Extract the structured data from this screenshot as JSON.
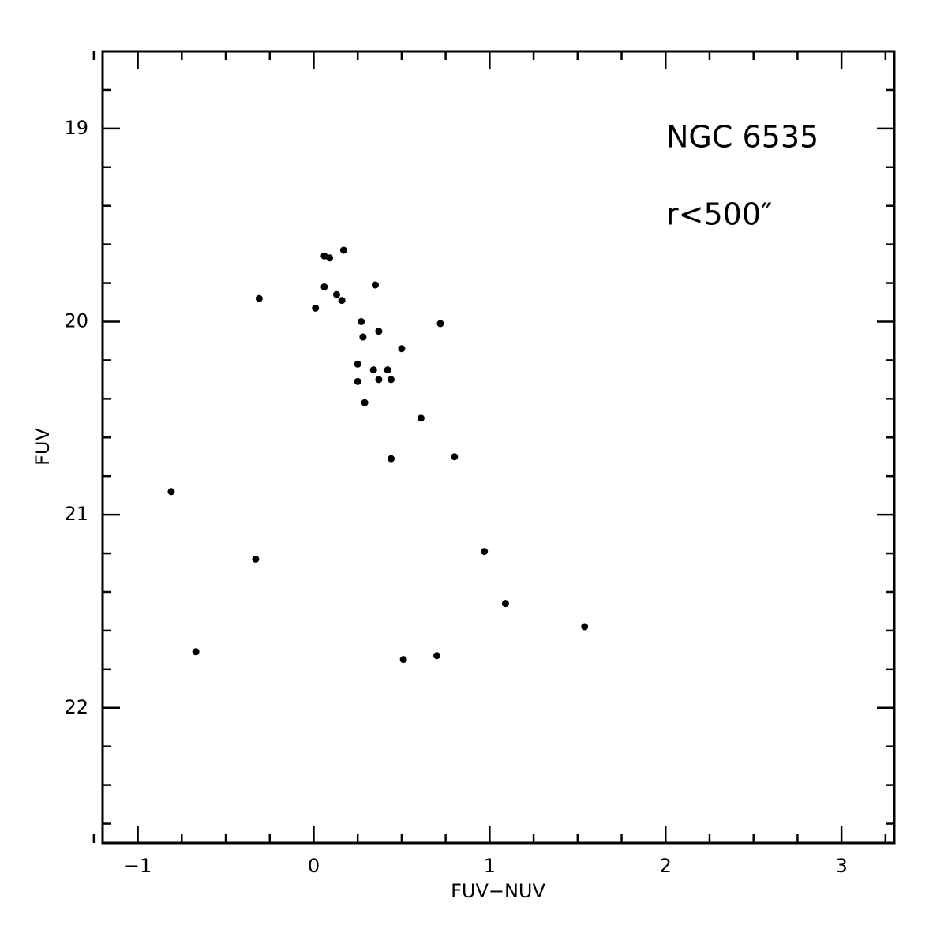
{
  "chart_data": {
    "type": "scatter",
    "annotations": [
      "NGC 6535",
      "r<500″"
    ],
    "x_label": "FUV−NUV",
    "y_label": "FUV",
    "xlim": [
      -1.2,
      3.3
    ],
    "ylim": [
      22.7,
      18.6
    ],
    "y_inverted": true,
    "xticks": [
      {
        "value": -1,
        "label": "−1"
      },
      0,
      1,
      2,
      3
    ],
    "yticks": [
      19,
      20,
      21,
      22
    ],
    "xminorticks": [
      -1.25,
      -0.75,
      -0.5,
      -0.25,
      0.25,
      0.5,
      0.75,
      1.25,
      1.5,
      1.75,
      2.25,
      2.5,
      2.75,
      3.25
    ],
    "yminorticks": [
      18.8,
      19.2,
      19.4,
      19.6,
      19.8,
      20.2,
      20.4,
      20.6,
      20.8,
      21.2,
      21.4,
      21.6,
      21.8,
      22.2,
      22.4,
      22.6
    ],
    "color": "#000000",
    "x": [
      0.06,
      0.09,
      0.17,
      0.35,
      0.06,
      0.13,
      0.16,
      -0.31,
      0.01,
      0.27,
      0.72,
      0.37,
      0.28,
      0.5,
      0.25,
      0.34,
      0.42,
      0.25,
      0.37,
      0.44,
      0.29,
      0.61,
      0.44,
      0.8,
      -0.81,
      -0.33,
      0.97,
      1.09,
      1.54,
      -0.67,
      0.51,
      0.7
    ],
    "values": [
      19.66,
      19.67,
      19.63,
      19.81,
      19.82,
      19.86,
      19.89,
      19.88,
      19.93,
      20.0,
      20.01,
      20.05,
      20.08,
      20.14,
      20.22,
      20.25,
      20.25,
      20.31,
      20.3,
      20.3,
      20.42,
      20.5,
      20.71,
      20.7,
      20.88,
      21.23,
      21.19,
      21.46,
      21.58,
      21.71,
      21.75,
      21.73
    ]
  }
}
